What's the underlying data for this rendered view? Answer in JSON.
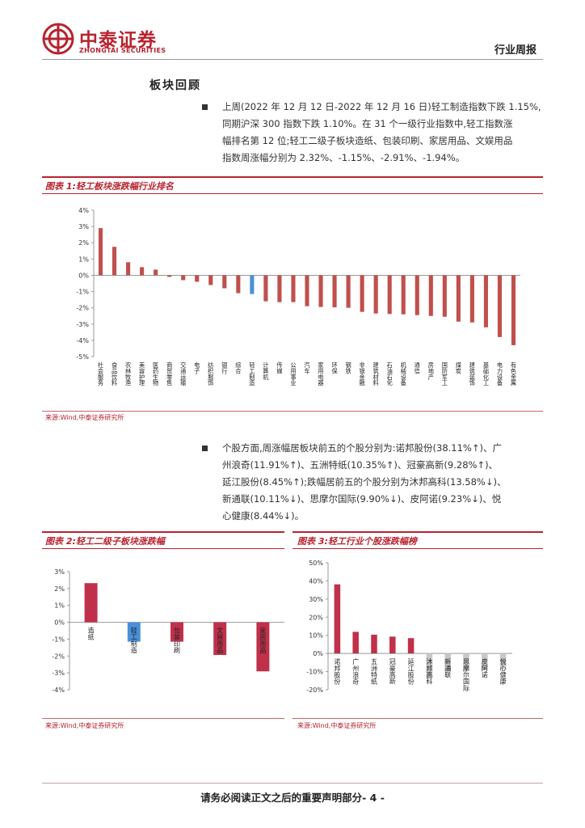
{
  "header": {
    "logo_cn": "中泰证券",
    "logo_en": "ZHONGTAI SECURITIES",
    "report_type": "行业周报",
    "brand_color": "#b8232f"
  },
  "section_title": "板块回顾",
  "para1": [
    "上周(2022 年 12 月 12 日-2022 年 12 月 16 日)轻工制造指数下跌 1.15%,",
    "同期沪深 300 指数下跌 1.10%。在 31 个一级行业指数中,轻工指数涨",
    "幅排名第 12 位;轻工二级子板块造纸、包装印刷、家居用品、文娱用品",
    "指数周涨幅分别为 2.32%、-1.15%、-2.91%、-1.94%。"
  ],
  "para2": [
    "个股方面,周涨幅居板块前五的个股分别为:诺邦股份(38.11%↑)、广",
    "州浪奇(11.91%↑)、五洲特纸(10.35%↑)、冠豪高新(9.28%↑)、",
    "延江股份(8.45%↑);跌幅居前五的个股分别为沐邦高科(13.58%↓)、",
    "新通联(10.11%↓)、思摩尔国际(9.90%↓)、皮阿诺(9.23%↓)、悦",
    "心健康(8.44%↓)。"
  ],
  "fig1": {
    "title": "图表 1:轻工板块涨跌幅行业排名",
    "source": "来源:Wind,中泰证券研究所"
  },
  "fig2": {
    "title": "图表 2:轻工二级子板块涨跌幅",
    "source": "来源:Wind,中泰证券研究所"
  },
  "fig3": {
    "title": "图表 3:轻工行业个股涨跌幅榜",
    "source": "来源:Wind,中泰证券研究所"
  },
  "footer": "请务必阅读正文之后的重要声明部分- 4 -",
  "chart_data": [
    {
      "type": "bar",
      "title": "图表 1:轻工板块涨跌幅行业排名",
      "categories": [
        "社会服务",
        "食品饮料",
        "农林牧渔",
        "美容护理",
        "医药生物",
        "商贸零售",
        "交通运输",
        "电子",
        "纺织服饰",
        "银行",
        "综合",
        "轻工制造",
        "计算机",
        "传媒",
        "公用事业",
        "汽车",
        "家用电器",
        "环保",
        "钢铁",
        "非银金融",
        "建筑材料",
        "石油石化",
        "机械设备",
        "通信",
        "房地产",
        "国防军工",
        "煤炭",
        "建筑装饰",
        "基础化工",
        "电力设备",
        "有色金属"
      ],
      "values": [
        2.9,
        1.75,
        0.8,
        0.5,
        0.35,
        -0.1,
        -0.3,
        -0.4,
        -0.6,
        -0.8,
        -1.1,
        -1.15,
        -1.6,
        -1.65,
        -1.65,
        -1.9,
        -1.95,
        -1.97,
        -2.0,
        -2.25,
        -2.35,
        -2.38,
        -2.4,
        -2.45,
        -2.5,
        -2.55,
        -2.85,
        -2.9,
        -3.2,
        -3.8,
        -4.3
      ],
      "highlight": "轻工制造",
      "yticks": [
        "4%",
        "3%",
        "2%",
        "1%",
        "0%",
        "-1%",
        "-2%",
        "-3%",
        "-4%",
        "-5%"
      ],
      "ylim": [
        -5,
        4
      ],
      "colors": {
        "bar": "#c0504d",
        "highlight": "#4a90d9"
      }
    },
    {
      "type": "bar",
      "title": "图表 2:轻工二级子板块涨跌幅",
      "categories": [
        "造纸",
        "轻工制造",
        "包装印刷",
        "文娱用品",
        "家居用品"
      ],
      "values": [
        2.32,
        -1.15,
        -1.15,
        -1.94,
        -2.91
      ],
      "highlight": "轻工制造",
      "yticks": [
        "3%",
        "2%",
        "1%",
        "0%",
        "-1%",
        "-2%",
        "-3%",
        "-4%"
      ],
      "ylim": [
        -4,
        3
      ],
      "colors": {
        "bar": "#c0304a",
        "highlight": "#4a90d9"
      }
    },
    {
      "type": "bar",
      "title": "图表 3:轻工行业个股涨跌幅榜",
      "categories": [
        "诺邦股份",
        "广州浪奇",
        "五洲特纸",
        "冠豪高新",
        "延江股份",
        "沐邦高科",
        "新通联",
        "思摩尔国际",
        "皮阿诺",
        "悦心健康"
      ],
      "values": [
        38.11,
        11.91,
        10.35,
        9.28,
        8.45,
        -13.58,
        -10.11,
        -9.9,
        -9.23,
        -8.44
      ],
      "yticks": [
        "50%",
        "40%",
        "30%",
        "20%",
        "10%",
        "0%",
        "-10%",
        "-20%"
      ],
      "ylim": [
        -20,
        50
      ],
      "colors": {
        "up": "#c0304a",
        "down": "#c8c8c8"
      }
    }
  ]
}
